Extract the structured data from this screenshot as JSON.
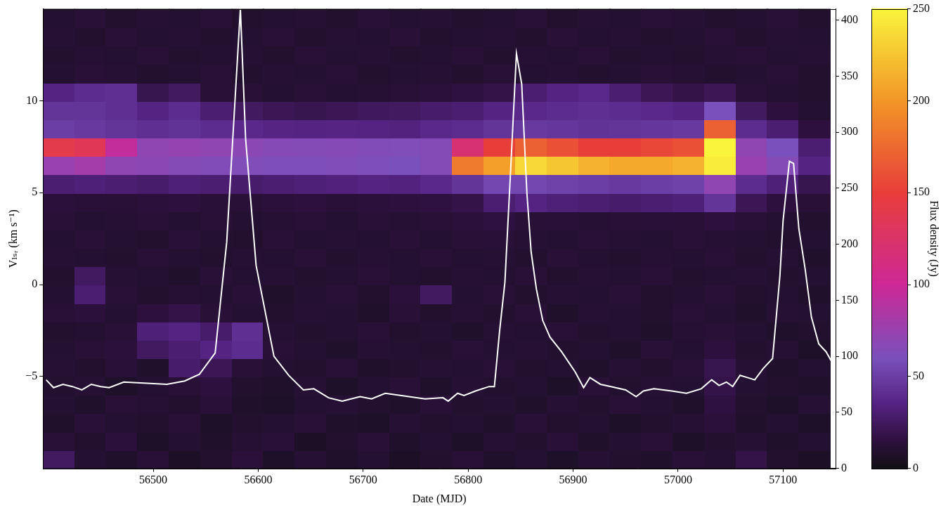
{
  "chart_data": {
    "type": "heatmap",
    "x_label": "Date (MJD)",
    "y_label": "Vₗₛᵣ (km s⁻¹)",
    "xlim": [
      56395,
      57150
    ],
    "xticks": [
      56500,
      56600,
      56700,
      56800,
      56900,
      57000,
      57100
    ],
    "ylim": [
      -10,
      15
    ],
    "yticks": [
      {
        "value": -5,
        "label": "−5"
      },
      0,
      5,
      10
    ],
    "y2lim": [
      0,
      410
    ],
    "y2ticks": [
      0,
      50,
      100,
      150,
      200,
      250,
      300,
      350,
      400
    ],
    "grid": false,
    "heatmap": {
      "x_edges": [
        56395,
        56425,
        56455,
        56485,
        56515,
        56545,
        56575,
        56605,
        56635,
        56665,
        56695,
        56725,
        56755,
        56785,
        56815,
        56845,
        56875,
        56905,
        56935,
        56965,
        56995,
        57025,
        57055,
        57085,
        57115,
        57145
      ],
      "y_edges": [
        -10,
        -9,
        -8,
        -7,
        -6,
        -5,
        -4,
        -3,
        -2,
        -1,
        0,
        1,
        2,
        3,
        4,
        5,
        6,
        7,
        8,
        9,
        10,
        11,
        12,
        13,
        14,
        15
      ],
      "cells": [
        [
          25,
          10,
          8,
          12,
          6,
          9,
          14,
          7,
          11,
          8,
          10,
          6,
          9,
          12,
          8,
          10,
          7,
          11,
          9,
          8,
          12,
          10,
          18,
          9,
          6
        ],
        [
          12,
          9,
          14,
          7,
          10,
          8,
          11,
          13,
          6,
          9,
          12,
          8,
          10,
          7,
          11,
          9,
          13,
          8,
          10,
          12,
          7,
          9,
          11,
          8,
          10
        ],
        [
          8,
          13,
          10,
          9,
          12,
          7,
          9,
          10,
          12,
          8,
          7,
          11,
          9,
          10,
          8,
          12,
          9,
          10,
          7,
          9,
          11,
          14,
          8,
          10,
          7
        ],
        [
          10,
          8,
          12,
          11,
          9,
          13,
          8,
          7,
          10,
          11,
          9,
          8,
          12,
          9,
          10,
          8,
          11,
          9,
          12,
          10,
          8,
          16,
          9,
          7,
          11
        ],
        [
          9,
          11,
          7,
          10,
          12,
          15,
          9,
          8,
          11,
          7,
          10,
          12,
          8,
          11,
          9,
          10,
          7,
          12,
          9,
          11,
          10,
          18,
          10,
          9,
          8
        ],
        [
          11,
          9,
          13,
          8,
          28,
          22,
          12,
          10,
          9,
          12,
          8,
          9,
          11,
          10,
          12,
          9,
          10,
          8,
          11,
          9,
          12,
          20,
          11,
          8,
          10
        ],
        [
          10,
          12,
          14,
          25,
          30,
          35,
          40,
          12,
          10,
          8,
          11,
          10,
          9,
          12,
          10,
          11,
          9,
          10,
          8,
          12,
          10,
          15,
          9,
          11,
          7
        ],
        [
          9,
          10,
          12,
          32,
          35,
          28,
          42,
          11,
          9,
          10,
          12,
          9,
          10,
          8,
          11,
          10,
          12,
          9,
          10,
          8,
          11,
          12,
          10,
          8,
          9
        ],
        [
          12,
          14,
          10,
          15,
          18,
          12,
          10,
          9,
          11,
          10,
          8,
          12,
          9,
          11,
          9,
          12,
          8,
          11,
          10,
          9,
          12,
          10,
          8,
          11,
          10
        ],
        [
          10,
          30,
          12,
          9,
          11,
          10,
          12,
          8,
          10,
          12,
          9,
          14,
          25,
          10,
          12,
          9,
          11,
          10,
          12,
          9,
          10,
          12,
          9,
          10,
          8
        ],
        [
          9,
          25,
          11,
          10,
          8,
          12,
          10,
          11,
          9,
          10,
          12,
          10,
          9,
          11,
          10,
          12,
          9,
          11,
          10,
          12,
          9,
          10,
          11,
          9,
          10
        ],
        [
          11,
          10,
          9,
          12,
          10,
          9,
          11,
          10,
          12,
          9,
          11,
          10,
          12,
          10,
          11,
          9,
          12,
          10,
          9,
          11,
          10,
          12,
          9,
          11,
          8
        ],
        [
          10,
          12,
          10,
          9,
          13,
          10,
          9,
          12,
          10,
          11,
          10,
          12,
          10,
          12,
          13,
          11,
          10,
          12,
          11,
          10,
          12,
          11,
          10,
          9,
          10
        ],
        [
          12,
          10,
          11,
          12,
          10,
          12,
          10,
          11,
          12,
          10,
          12,
          11,
          12,
          14,
          16,
          12,
          13,
          11,
          12,
          13,
          12,
          15,
          12,
          10,
          9
        ],
        [
          14,
          13,
          12,
          14,
          15,
          13,
          12,
          14,
          15,
          13,
          14,
          15,
          16,
          18,
          30,
          35,
          32,
          30,
          28,
          30,
          32,
          45,
          22,
          15,
          12
        ],
        [
          30,
          32,
          30,
          28,
          32,
          30,
          28,
          30,
          32,
          33,
          35,
          34,
          38,
          45,
          55,
          55,
          52,
          50,
          48,
          50,
          52,
          70,
          40,
          32,
          20
        ],
        [
          75,
          80,
          70,
          68,
          65,
          64,
          63,
          62,
          62,
          63,
          62,
          60,
          65,
          185,
          205,
          235,
          225,
          215,
          210,
          210,
          215,
          245,
          75,
          65,
          35
        ],
        [
          140,
          135,
          95,
          70,
          72,
          70,
          68,
          66,
          65,
          66,
          64,
          63,
          65,
          120,
          150,
          170,
          160,
          150,
          150,
          155,
          160,
          250,
          70,
          60,
          30
        ],
        [
          50,
          48,
          45,
          42,
          44,
          40,
          38,
          36,
          35,
          36,
          35,
          34,
          38,
          40,
          45,
          48,
          46,
          44,
          45,
          46,
          48,
          170,
          40,
          30,
          15
        ],
        [
          45,
          45,
          42,
          35,
          40,
          30,
          25,
          22,
          20,
          22,
          24,
          25,
          28,
          30,
          35,
          38,
          40,
          42,
          40,
          38,
          35,
          60,
          25,
          15,
          10
        ],
        [
          35,
          40,
          42,
          20,
          25,
          12,
          12,
          10,
          12,
          10,
          11,
          12,
          14,
          16,
          18,
          30,
          35,
          38,
          30,
          22,
          18,
          22,
          12,
          10,
          9
        ],
        [
          10,
          12,
          11,
          9,
          10,
          12,
          9,
          11,
          10,
          12,
          9,
          10,
          11,
          9,
          12,
          10,
          11,
          9,
          10,
          12,
          11,
          9,
          10,
          12,
          9
        ],
        [
          9,
          11,
          10,
          12,
          9,
          10,
          11,
          9,
          12,
          10,
          11,
          9,
          10,
          12,
          9,
          11,
          10,
          12,
          9,
          10,
          9,
          11,
          12,
          10,
          11
        ],
        [
          11,
          9,
          12,
          10,
          11,
          9,
          10,
          12,
          9,
          11,
          10,
          12,
          9,
          10,
          11,
          9,
          12,
          10,
          11,
          9,
          10,
          12,
          9,
          11,
          10
        ],
        [
          10,
          12,
          9,
          11,
          10,
          12,
          9,
          10,
          11,
          9,
          12,
          10,
          11,
          9,
          10,
          12,
          9,
          11,
          10,
          12,
          11,
          9,
          10,
          12,
          9
        ]
      ]
    },
    "colorbar": {
      "label": "Flux density (Jy)",
      "lim": [
        0,
        250
      ],
      "ticks": [
        0,
        50,
        100,
        150,
        200,
        250
      ]
    },
    "series": [
      {
        "type": "line",
        "axis": "y2",
        "color": "#ffffff",
        "x": [
          56398,
          56405,
          56414,
          56423,
          56432,
          56441,
          56450,
          56458,
          56472,
          56513,
          56530,
          56544,
          56559,
          56570,
          56583,
          56588,
          56598,
          56615,
          56629,
          56643,
          56653,
          56667,
          56680,
          56697,
          56708,
          56721,
          56759,
          56776,
          56781,
          56790,
          56796,
          56807,
          56820,
          56825,
          56830,
          56835,
          56841,
          56846,
          56851,
          56856,
          56860,
          56865,
          56871,
          56878,
          56889,
          56902,
          56910,
          56916,
          56926,
          56936,
          56950,
          56960,
          56967,
          56977,
          56994,
          57008,
          57022,
          57032,
          57039,
          57046,
          57052,
          57059,
          57066,
          57073,
          57081,
          57090,
          57097,
          57100,
          57106,
          57110,
          57115,
          57121,
          57127,
          57134,
          57141,
          57150
        ],
        "values": [
          79,
          72,
          75,
          73,
          70,
          75,
          73,
          72,
          77,
          75,
          78,
          84,
          103,
          202,
          410,
          294,
          181,
          100,
          83,
          70,
          71,
          63,
          60,
          64,
          62,
          67,
          62,
          63,
          60,
          67,
          65,
          69,
          73,
          73,
          123,
          166,
          276,
          370,
          343,
          245,
          193,
          160,
          132,
          117,
          104,
          86,
          72,
          81,
          75,
          73,
          70,
          64,
          69,
          71,
          69,
          67,
          71,
          79,
          74,
          77,
          73,
          83,
          81,
          79,
          89,
          98,
          172,
          221,
          274,
          272,
          214,
          178,
          135,
          111,
          104,
          89
        ]
      }
    ]
  }
}
